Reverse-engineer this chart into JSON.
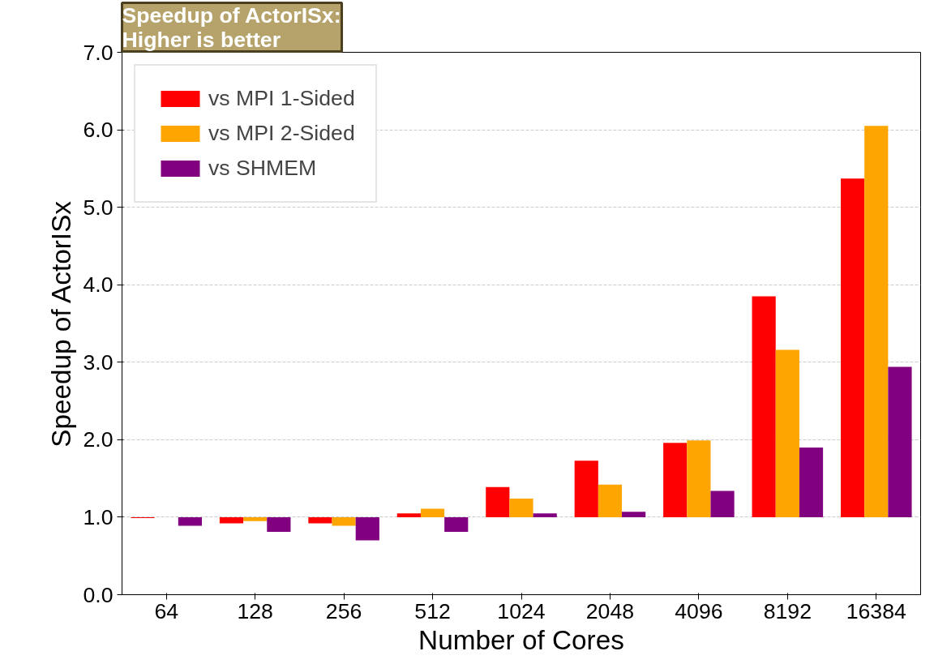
{
  "chart_data": {
    "type": "bar",
    "title": "Speedup of ActorISx:\nHigher is better",
    "xlabel": "Number of Cores",
    "ylabel": "Speedup of ActorISx",
    "categories": [
      "64",
      "128",
      "256",
      "512",
      "1024",
      "2048",
      "4096",
      "8192",
      "16384"
    ],
    "series": [
      {
        "name": "vs MPI 1-Sided",
        "color": "#ff0000",
        "base": [
          1,
          1,
          1,
          1,
          1,
          1,
          1,
          1,
          1
        ],
        "values": [
          -0.01,
          -0.08,
          -0.08,
          0.05,
          0.39,
          0.73,
          0.96,
          2.85,
          4.37
        ]
      },
      {
        "name": "vs MPI 2-Sided",
        "color": "#ffa500",
        "base": [
          null,
          1,
          1,
          1,
          1,
          1,
          1,
          1,
          1
        ],
        "values": [
          null,
          -0.05,
          -0.11,
          0.11,
          0.24,
          0.42,
          0.99,
          2.16,
          5.05
        ]
      },
      {
        "name": "vs SHMEM",
        "color": "#800080",
        "base": [
          1,
          1,
          1,
          1,
          1,
          1,
          1,
          1,
          1
        ],
        "values": [
          -0.11,
          -0.19,
          -0.3,
          -0.19,
          0.05,
          0.07,
          0.34,
          0.9,
          1.94
        ]
      }
    ],
    "ylim": [
      0,
      7
    ],
    "yticks": [
      {
        "value": 0,
        "label": "0.0"
      },
      {
        "value": 1,
        "label": "1.0"
      },
      {
        "value": 2,
        "label": "2.0"
      },
      {
        "value": 3,
        "label": "3.0"
      },
      {
        "value": 4,
        "label": "4.0"
      },
      {
        "value": 5,
        "label": "5.0"
      },
      {
        "value": 6,
        "label": "6.0"
      },
      {
        "value": 7,
        "label": "7.0"
      }
    ],
    "grid": "y",
    "legend": "top left"
  }
}
